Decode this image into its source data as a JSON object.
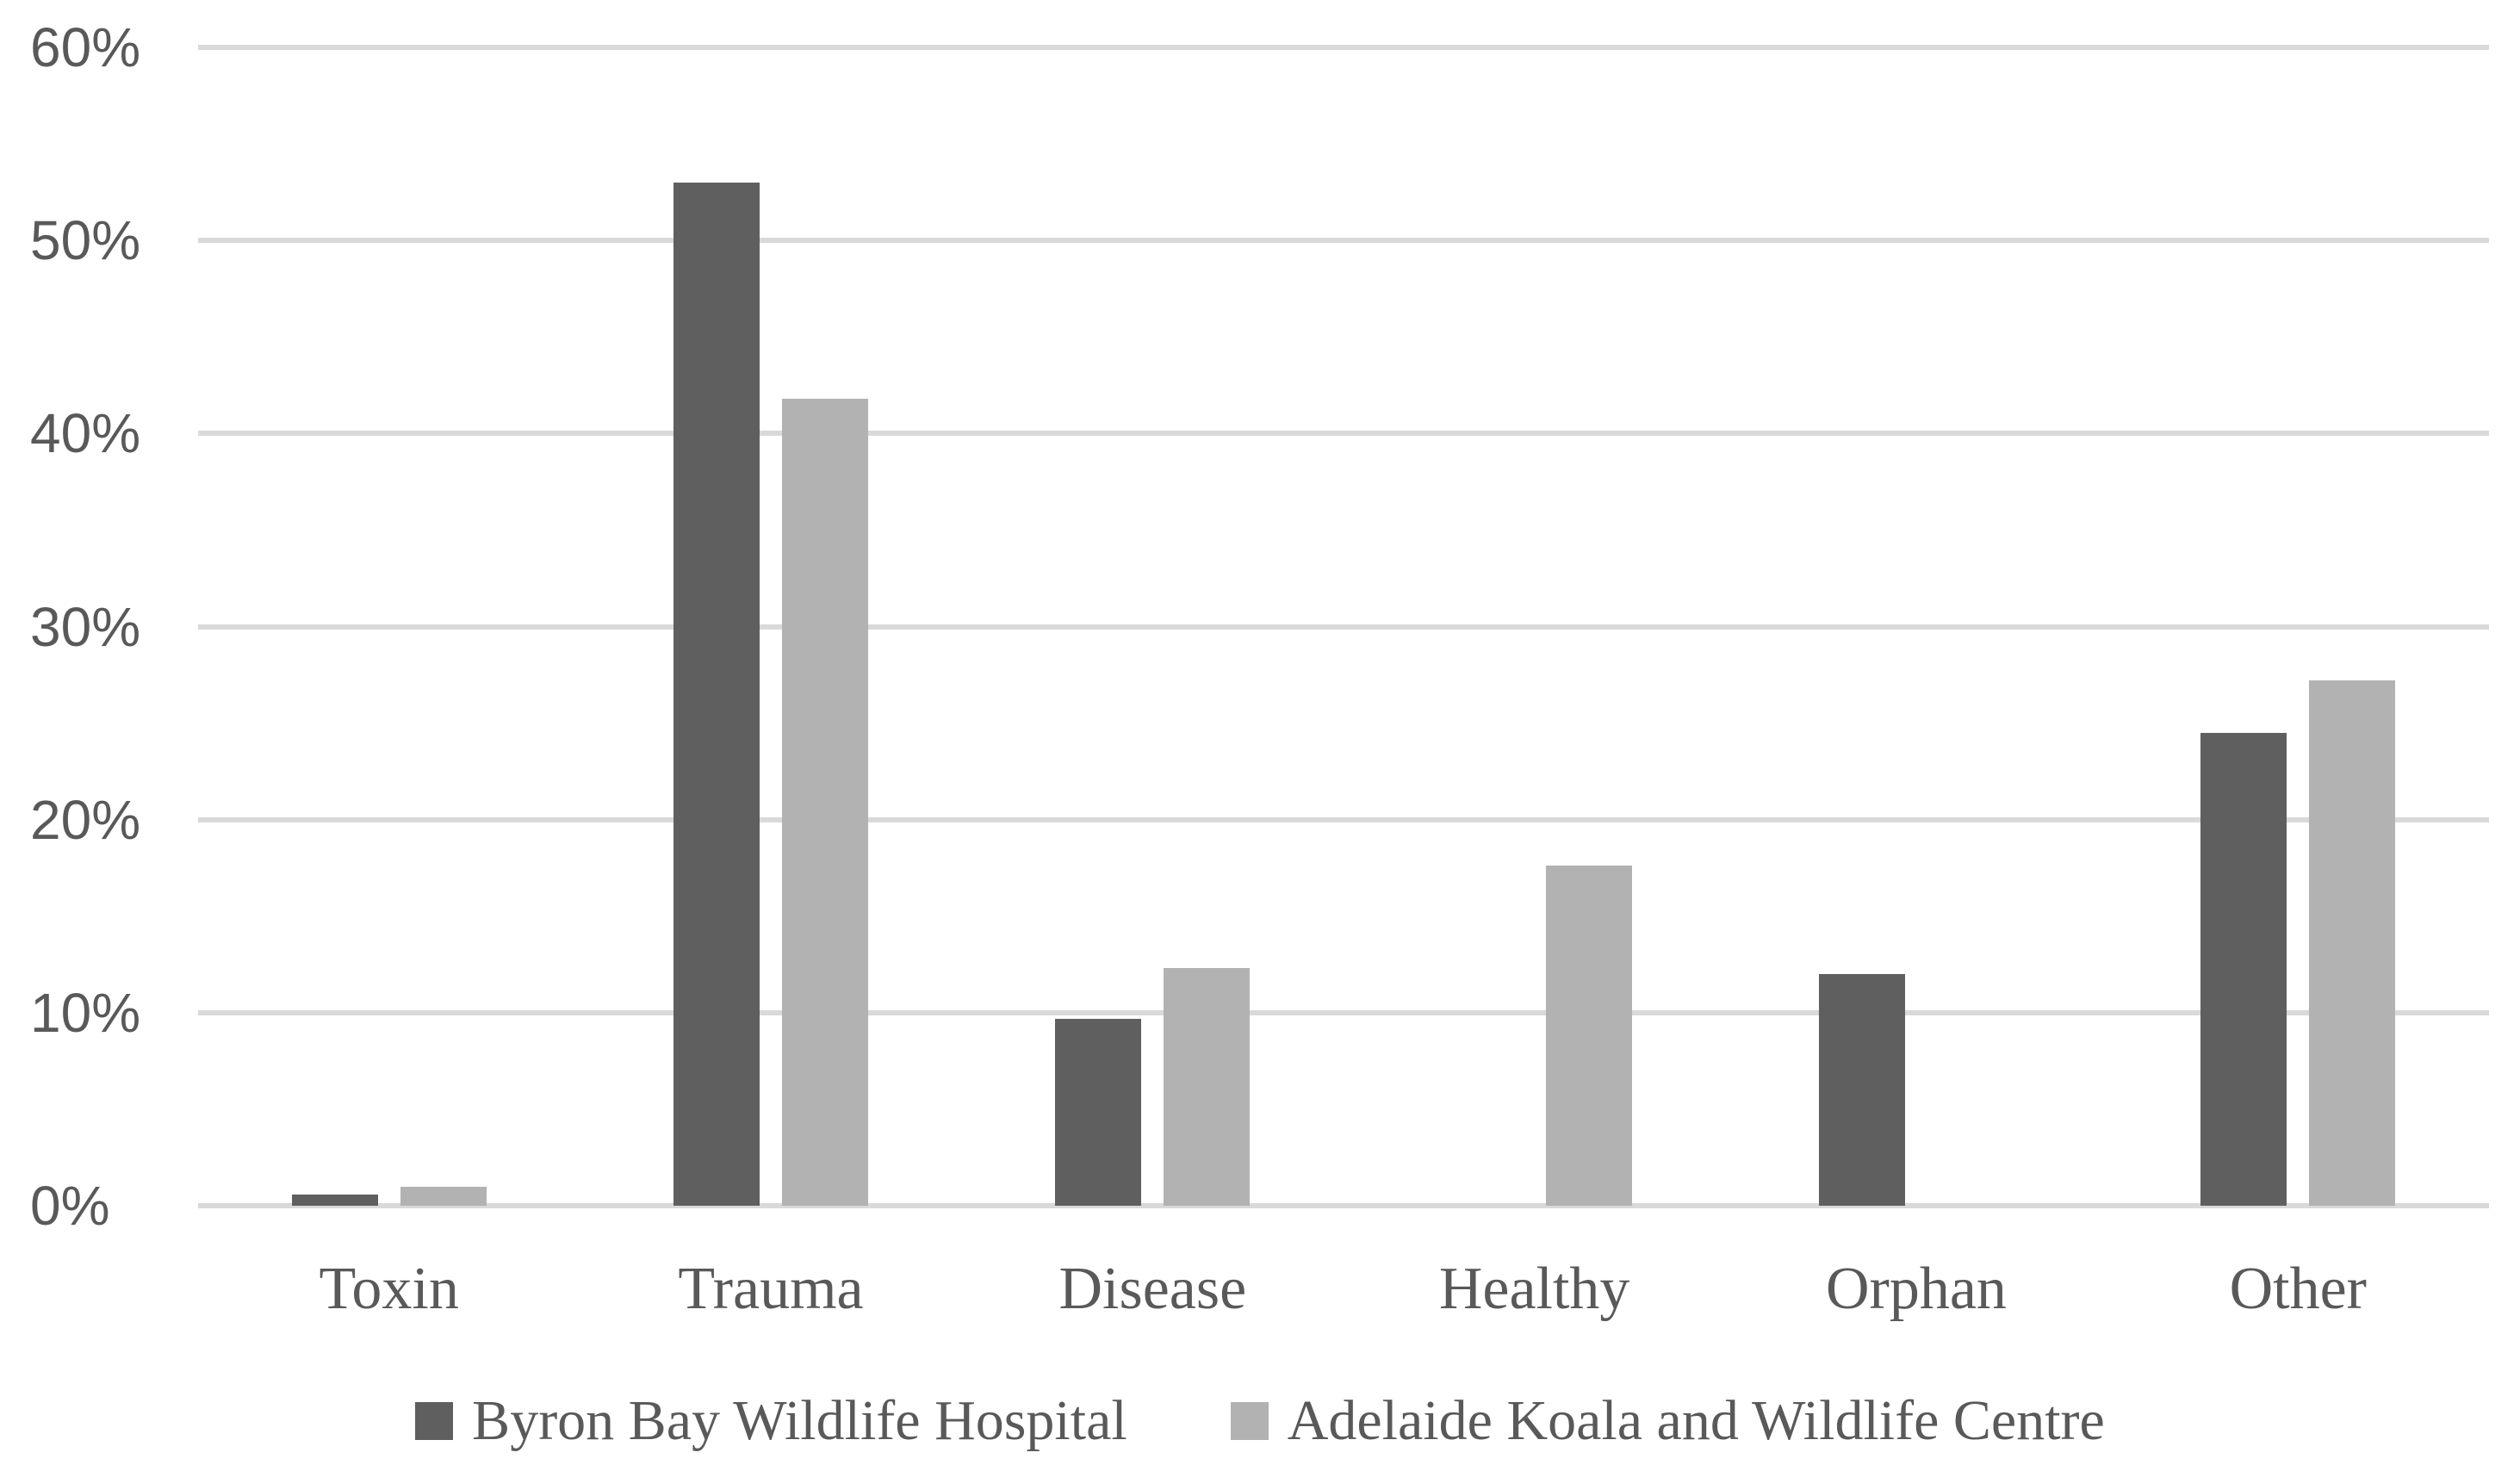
{
  "figure": {
    "background": "#ffffff",
    "text_color": "#595959",
    "gridline_color": "#d9d9d9"
  },
  "chart_data": {
    "type": "bar",
    "title": "",
    "xlabel": "",
    "ylabel": "",
    "categories": [
      "Toxin",
      "Trauma",
      "Disease",
      "Healthy",
      "Orphan",
      "Other"
    ],
    "series": [
      {
        "name": "Byron Bay Wildlife Hospital",
        "color": "#5f5f5f",
        "values": [
          0.6,
          53.0,
          9.7,
          0,
          12.0,
          24.5
        ]
      },
      {
        "name": "Adelaide Koala and Wildlife Centre",
        "color": "#b2b2b2",
        "values": [
          1.0,
          41.8,
          12.3,
          17.6,
          0,
          27.2
        ]
      }
    ],
    "ylim": [
      0,
      60
    ],
    "yticks": [
      {
        "value": 0,
        "label": "0%"
      },
      {
        "value": 10,
        "label": "10%"
      },
      {
        "value": 20,
        "label": "20%"
      },
      {
        "value": 30,
        "label": "30%"
      },
      {
        "value": 40,
        "label": "40%"
      },
      {
        "value": 50,
        "label": "50%"
      },
      {
        "value": 60,
        "label": "60%"
      }
    ],
    "grid": true,
    "legend_position": "bottom"
  }
}
